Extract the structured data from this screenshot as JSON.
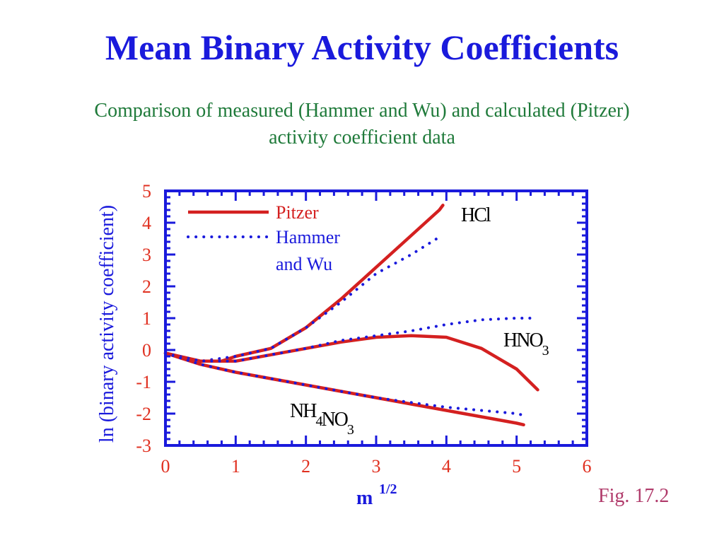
{
  "slide": {
    "title": "Mean Binary Activity Coefficients",
    "subtitle": "Comparison of measured (Hammer and Wu) and calculated (Pitzer) activity coefficient data",
    "figure_label": "Fig. 17.2"
  },
  "colors": {
    "title": "#1a1adc",
    "subtitle": "#1f7a3a",
    "axis": "#1a1adc",
    "tick_labels": "#e03020",
    "pitzer": "#d42020",
    "hammer_wu": "#1a1adc",
    "figure_label": "#b03a6a"
  },
  "chart_data": {
    "type": "line",
    "title": "",
    "xlabel": "m",
    "xlabel_superscript": "1/2",
    "ylabel": "ln (binary activity coefficient)",
    "xlim": [
      0,
      6
    ],
    "ylim": [
      -3,
      5
    ],
    "x_ticks": [
      "0",
      "1",
      "2",
      "3",
      "4",
      "5",
      "6"
    ],
    "y_ticks": [
      "5",
      "4",
      "3",
      "2",
      "1",
      "0",
      "-1",
      "-2",
      "-3"
    ],
    "grid": false,
    "legend": {
      "placement": "top-left",
      "entries": [
        {
          "label": "Pitzer",
          "style": "solid",
          "color": "#d42020"
        },
        {
          "label": "Hammer and Wu",
          "lines": [
            "Hammer",
            "and Wu"
          ],
          "style": "dotted",
          "color": "#1a1adc"
        }
      ]
    },
    "annotations": [
      {
        "text": "HCl",
        "parts": [
          {
            "t": "HCl",
            "sub": false
          }
        ]
      },
      {
        "text": "HNO3",
        "parts": [
          {
            "t": "HNO",
            "sub": false
          },
          {
            "t": "3",
            "sub": true
          }
        ]
      },
      {
        "text": "NH4NO3",
        "parts": [
          {
            "t": "NH",
            "sub": false
          },
          {
            "t": "4",
            "sub": true
          },
          {
            "t": "NO",
            "sub": false
          },
          {
            "t": "3",
            "sub": true
          }
        ]
      }
    ],
    "series": [
      {
        "solute": "HCl",
        "model": "Pitzer",
        "style": "solid",
        "x": [
          0,
          0.5,
          0.8,
          1.0,
          1.5,
          2.0,
          2.5,
          3.0,
          3.5,
          3.9,
          3.95
        ],
        "y": [
          -0.1,
          -0.35,
          -0.35,
          -0.2,
          0.05,
          0.7,
          1.6,
          2.6,
          3.6,
          4.4,
          4.55
        ]
      },
      {
        "solute": "HCl",
        "model": "Hammer and Wu",
        "style": "dotted",
        "x": [
          0,
          0.5,
          1.0,
          1.5,
          2.0,
          2.5,
          3.0,
          3.5,
          3.9
        ],
        "y": [
          -0.1,
          -0.35,
          -0.2,
          0.05,
          0.7,
          1.5,
          2.4,
          3.0,
          3.55
        ]
      },
      {
        "solute": "HNO3",
        "model": "Pitzer",
        "style": "solid",
        "x": [
          0,
          0.5,
          1.0,
          1.5,
          2.0,
          2.5,
          3.0,
          3.5,
          4.0,
          4.5,
          5.0,
          5.3
        ],
        "y": [
          -0.1,
          -0.35,
          -0.35,
          -0.15,
          0.05,
          0.25,
          0.4,
          0.45,
          0.4,
          0.05,
          -0.6,
          -1.25
        ]
      },
      {
        "solute": "HNO3",
        "model": "Hammer and Wu",
        "style": "dotted",
        "x": [
          0,
          0.5,
          1.0,
          1.5,
          2.0,
          2.5,
          3.0,
          3.5,
          4.0,
          4.5,
          5.0,
          5.2
        ],
        "y": [
          -0.1,
          -0.35,
          -0.35,
          -0.15,
          0.05,
          0.3,
          0.45,
          0.6,
          0.8,
          0.95,
          1.0,
          1.0
        ]
      },
      {
        "solute": "NH4NO3",
        "model": "Pitzer",
        "style": "solid",
        "x": [
          0,
          0.5,
          1.0,
          1.5,
          2.0,
          2.5,
          3.0,
          3.5,
          4.0,
          4.5,
          5.0,
          5.1
        ],
        "y": [
          -0.1,
          -0.45,
          -0.7,
          -0.9,
          -1.1,
          -1.3,
          -1.5,
          -1.7,
          -1.9,
          -2.1,
          -2.3,
          -2.35
        ]
      },
      {
        "solute": "NH4NO3",
        "model": "Hammer and Wu",
        "style": "dotted",
        "x": [
          0,
          0.5,
          1.0,
          1.5,
          2.0,
          2.5,
          3.0,
          3.5,
          4.0,
          4.5,
          5.0,
          5.1
        ],
        "y": [
          -0.1,
          -0.45,
          -0.7,
          -0.9,
          -1.1,
          -1.3,
          -1.5,
          -1.65,
          -1.8,
          -1.9,
          -2.0,
          -2.05
        ]
      }
    ]
  }
}
